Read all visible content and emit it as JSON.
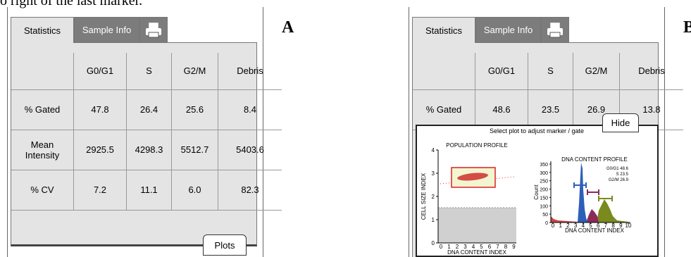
{
  "caption_fragment": "o right of the last marker.",
  "panels": [
    {
      "label": "A",
      "tabs": [
        "Statistics",
        "Sample Info"
      ],
      "table": {
        "header": [
          "G0/G1",
          "S",
          "G2/M",
          "Debris"
        ],
        "rows": [
          {
            "label": "% Gated",
            "cells": [
              "47.8",
              "26.4",
              "25.6",
              "8.4"
            ]
          },
          {
            "label": "Mean Intensity",
            "cells": [
              "2925.5",
              "4298.3",
              "5512.7",
              "5403.6"
            ]
          },
          {
            "label": "% CV",
            "cells": [
              "7.2",
              "11.1",
              "6.0",
              "82.3"
            ]
          }
        ]
      },
      "button": "Plots"
    },
    {
      "label": "B",
      "tabs": [
        "Statistics",
        "Sample Info"
      ],
      "table": {
        "header": [
          "G0/G1",
          "S",
          "G2/M",
          "Debris"
        ],
        "rows": [
          {
            "label": "% Gated",
            "cells": [
              "48.6",
              "23.5",
              "26.9",
              "13.8"
            ]
          }
        ]
      },
      "button": "Hide",
      "plot_prompt": "Select plot to adjust marker / gate",
      "plots": [
        {
          "title": "POPULATION PROFILE",
          "x_label": "DNA CONTENT INDEX",
          "y_label": "CELL SIZE INDEX",
          "xticks": [
            0,
            1,
            2,
            3,
            4,
            5,
            6,
            7,
            8,
            9
          ],
          "yticks": [
            0,
            1,
            2,
            3,
            4
          ]
        },
        {
          "title": "DNA CONTENT PROFILE",
          "x_label": "DNA CONTENT INDEX",
          "y_label": "Count",
          "xticks": [
            0,
            1,
            2,
            3,
            4,
            5,
            6,
            7,
            8,
            9,
            10
          ],
          "yticks": [
            0,
            50,
            100,
            150,
            200,
            250,
            300,
            350
          ],
          "legend": [
            "G0/G1 48.6",
            "S 23.5",
            "G2/M 26.9"
          ]
        }
      ]
    }
  ]
}
